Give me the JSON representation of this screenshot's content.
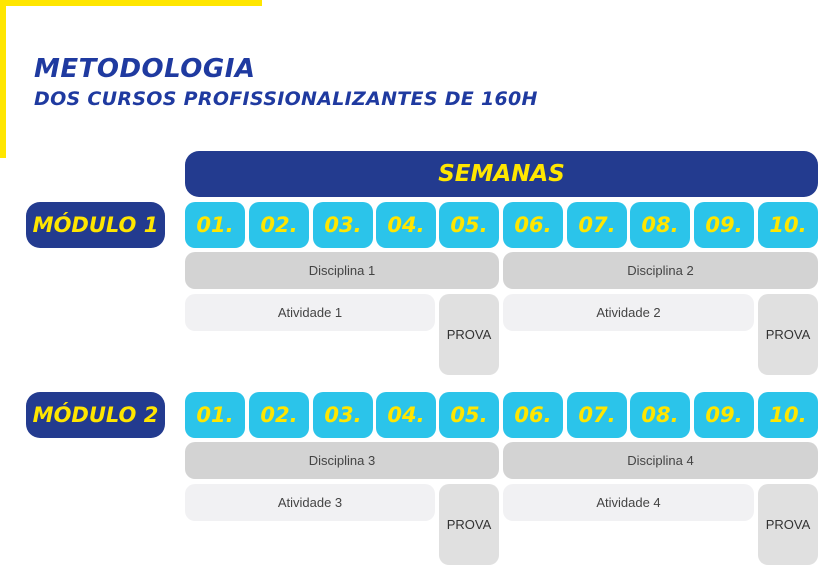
{
  "header": {
    "title": "METODOLOGIA",
    "subtitle": "DOS CURSOS PROFISSIONALIZANTES DE 160H"
  },
  "semanas_label": "SEMANAS",
  "colors": {
    "navy": "#233b8f",
    "yellow": "#ffe600",
    "cyan": "#2bc4ea",
    "title_blue": "#1f3aa0",
    "disciplina_gray": "#d3d3d3",
    "atividade_gray": "#f1f1f3",
    "prova_gray": "#e0e0e0"
  },
  "modules": [
    {
      "label": "MÓDULO 1",
      "weeks": [
        "01.",
        "02.",
        "03.",
        "04.",
        "05.",
        "06.",
        "07.",
        "08.",
        "09.",
        "10."
      ],
      "disciplinas": [
        "Disciplina 1",
        "Disciplina 2"
      ],
      "atividades": [
        "Atividade 1",
        "Atividade 2"
      ],
      "provas": [
        "PROVA",
        "PROVA"
      ]
    },
    {
      "label": "MÓDULO 2",
      "weeks": [
        "01.",
        "02.",
        "03.",
        "04.",
        "05.",
        "06.",
        "07.",
        "08.",
        "09.",
        "10."
      ],
      "disciplinas": [
        "Disciplina 3",
        "Disciplina 4"
      ],
      "atividades": [
        "Atividade 3",
        "Atividade 4"
      ],
      "provas": [
        "PROVA",
        "PROVA"
      ]
    }
  ]
}
